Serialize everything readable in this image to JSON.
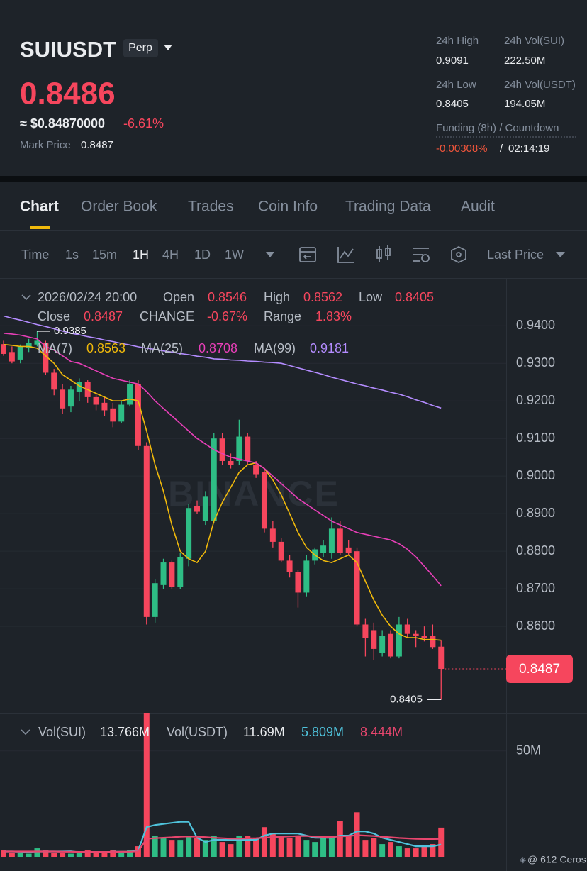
{
  "header": {
    "symbol": "SUIUSDT",
    "badge": "Perp",
    "price": "0.8486",
    "usd_price": "≈ $0.84870000",
    "change": "-6.61%",
    "mark_label": "Mark Price",
    "mark_price": "0.8487",
    "stats": [
      {
        "label": "24h High",
        "value": "0.9091"
      },
      {
        "label": "24h Vol(SUI)",
        "value": "222.50M"
      },
      {
        "label": "24h Low",
        "value": "0.8405"
      },
      {
        "label": "24h Vol(USDT)",
        "value": "194.05M"
      }
    ],
    "funding_label": "Funding (8h) / Countdown",
    "funding_rate": "-0.00308%",
    "funding_sep": "/",
    "funding_countdown": "02:14:19"
  },
  "tabs": [
    "Chart",
    "Order Book",
    "Trades",
    "Coin Info",
    "Trading Data",
    "Audit"
  ],
  "toolbar": {
    "intervals": [
      "Time",
      "1s",
      "15m",
      "1H",
      "4H",
      "1D",
      "1W"
    ],
    "price_type": "Last Price"
  },
  "chart_data": {
    "type": "candlestick",
    "watermark": "BINANCE",
    "info": [
      {
        "label": "2026/02/24 20:00"
      },
      {
        "label": "Open",
        "value": "0.8546"
      },
      {
        "label": "High",
        "value": "0.8562"
      },
      {
        "label": "Low",
        "value": "0.8405"
      },
      {
        "label": "Close",
        "value": "0.8487"
      },
      {
        "label": "CHANGE",
        "value": "-0.67%"
      },
      {
        "label": "Range",
        "value": "1.83%"
      }
    ],
    "up_color": "#2ebd85",
    "down_color": "#f6465d",
    "open": [
      0.9351,
      0.933,
      0.931,
      0.934,
      0.935,
      0.9355,
      0.9275,
      0.923,
      0.9185,
      0.9225,
      0.925,
      0.921,
      0.9195,
      0.918,
      0.9145,
      0.919,
      0.9245,
      0.908,
      0.8625,
      0.871,
      0.877,
      0.8705,
      0.878,
      0.892,
      0.888,
      0.888,
      0.91,
      0.904,
      0.904,
      0.9105,
      0.903,
      0.901,
      0.886,
      0.8825,
      0.8775,
      0.8745,
      0.869,
      0.8775,
      0.8795,
      0.8795,
      0.886,
      0.881,
      0.88,
      0.8605,
      0.859,
      0.853,
      0.858,
      0.852,
      0.8605,
      0.858,
      0.8575,
      0.8575,
      0.8546
    ],
    "high": [
      0.936,
      0.9345,
      0.935,
      0.9365,
      0.9385,
      0.936,
      0.9285,
      0.9245,
      0.924,
      0.926,
      0.9255,
      0.922,
      0.921,
      0.9195,
      0.92,
      0.9255,
      0.9255,
      0.909,
      0.8725,
      0.878,
      0.8775,
      0.8795,
      0.8925,
      0.8935,
      0.896,
      0.9115,
      0.9115,
      0.906,
      0.915,
      0.9115,
      0.904,
      0.902,
      0.888,
      0.8835,
      0.879,
      0.875,
      0.879,
      0.881,
      0.883,
      0.889,
      0.888,
      0.883,
      0.881,
      0.862,
      0.861,
      0.859,
      0.859,
      0.8625,
      0.862,
      0.859,
      0.86,
      0.8605,
      0.8562
    ],
    "low": [
      0.932,
      0.93,
      0.93,
      0.933,
      0.9345,
      0.927,
      0.9215,
      0.9165,
      0.917,
      0.92,
      0.9195,
      0.9175,
      0.916,
      0.913,
      0.914,
      0.9185,
      0.907,
      0.8605,
      0.861,
      0.87,
      0.87,
      0.87,
      0.876,
      0.89,
      0.887,
      0.8875,
      0.903,
      0.902,
      0.903,
      0.903,
      0.8995,
      0.885,
      0.881,
      0.877,
      0.873,
      0.865,
      0.868,
      0.8765,
      0.8785,
      0.878,
      0.879,
      0.879,
      0.86,
      0.852,
      0.851,
      0.852,
      0.8515,
      0.8515,
      0.857,
      0.8545,
      0.856,
      0.854,
      0.8405
    ],
    "close": [
      0.9325,
      0.9305,
      0.9345,
      0.9355,
      0.936,
      0.9275,
      0.923,
      0.918,
      0.923,
      0.925,
      0.921,
      0.919,
      0.9175,
      0.9145,
      0.919,
      0.9245,
      0.908,
      0.8625,
      0.8715,
      0.877,
      0.8705,
      0.8785,
      0.8915,
      0.8905,
      0.8945,
      0.91,
      0.904,
      0.903,
      0.9105,
      0.904,
      0.9005,
      0.886,
      0.8825,
      0.8775,
      0.8745,
      0.869,
      0.8775,
      0.8805,
      0.8815,
      0.886,
      0.8795,
      0.8795,
      0.8605,
      0.857,
      0.854,
      0.8575,
      0.852,
      0.8605,
      0.858,
      0.8575,
      0.857,
      0.8545,
      0.8487
    ],
    "ma_series": [
      {
        "name": "MA(7)",
        "value_label": "0.8563",
        "color": "#f0b90b",
        "values": [
          0.935,
          0.9348,
          0.9345,
          0.9345,
          0.934,
          0.932,
          0.93,
          0.927,
          0.9255,
          0.924,
          0.923,
          0.922,
          0.921,
          0.92,
          0.92,
          0.9205,
          0.92,
          0.912,
          0.903,
          0.896,
          0.887,
          0.88,
          0.878,
          0.877,
          0.88,
          0.888,
          0.893,
          0.897,
          0.901,
          0.903,
          0.9035,
          0.902,
          0.899,
          0.895,
          0.89,
          0.885,
          0.881,
          0.879,
          0.8775,
          0.877,
          0.878,
          0.879,
          0.877,
          0.872,
          0.867,
          0.863,
          0.86,
          0.858,
          0.857,
          0.857,
          0.8565,
          0.8565,
          0.8563
        ]
      },
      {
        "name": "MA(25)",
        "value_label": "0.8708",
        "color": "#e83fb8",
        "values": [
          0.938,
          0.9378,
          0.9375,
          0.937,
          0.9365,
          0.9345,
          0.9335,
          0.932,
          0.9305,
          0.93,
          0.929,
          0.928,
          0.927,
          0.926,
          0.9255,
          0.925,
          0.9245,
          0.9225,
          0.92,
          0.918,
          0.916,
          0.914,
          0.912,
          0.91,
          0.9085,
          0.907,
          0.906,
          0.905,
          0.9045,
          0.904,
          0.9035,
          0.902,
          0.9,
          0.898,
          0.896,
          0.894,
          0.8925,
          0.891,
          0.8895,
          0.888,
          0.887,
          0.886,
          0.885,
          0.8845,
          0.884,
          0.8835,
          0.883,
          0.882,
          0.8805,
          0.8785,
          0.876,
          0.8735,
          0.8708
        ]
      },
      {
        "name": "MA(99)",
        "value_label": "0.9181",
        "color": "#b48cff",
        "values": [
          0.9426,
          0.942,
          0.9415,
          0.9409,
          0.9403,
          0.9398,
          0.9392,
          0.9386,
          0.938,
          0.9376,
          0.9371,
          0.9367,
          0.9362,
          0.9358,
          0.9353,
          0.9349,
          0.9344,
          0.934,
          0.9337,
          0.9333,
          0.933,
          0.9326,
          0.9323,
          0.9319,
          0.9316,
          0.9312,
          0.9311,
          0.9309,
          0.9308,
          0.9306,
          0.9305,
          0.9303,
          0.9302,
          0.93,
          0.9294,
          0.9288,
          0.9282,
          0.9276,
          0.927,
          0.9263,
          0.9257,
          0.9251,
          0.9245,
          0.924,
          0.9234,
          0.9229,
          0.9223,
          0.9218,
          0.9211,
          0.9203,
          0.9196,
          0.9188,
          0.9181
        ]
      }
    ],
    "ylim": [
      0.837,
      0.9525
    ],
    "yticks": [
      {
        "value": 0.94,
        "label": "0.9400"
      },
      {
        "value": 0.93,
        "label": "0.9300"
      },
      {
        "value": 0.92,
        "label": "0.9200"
      },
      {
        "value": 0.91,
        "label": "0.9100"
      },
      {
        "value": 0.9,
        "label": "0.9000"
      },
      {
        "value": 0.89,
        "label": "0.8900"
      },
      {
        "value": 0.88,
        "label": "0.8800"
      },
      {
        "value": 0.87,
        "label": "0.8700"
      },
      {
        "value": 0.86,
        "label": "0.8600"
      }
    ],
    "grid": true,
    "high_marker": "0.9385",
    "low_marker": "0.8405",
    "last_price_tag": "0.8487",
    "volume": {
      "legend": [
        {
          "label": "Vol(SUI)",
          "value": "13.766M"
        },
        {
          "label": "Vol(USDT)",
          "value": "11.69M"
        }
      ],
      "values": [
        3,
        2,
        2,
        1.5,
        4,
        3,
        2,
        2,
        1.5,
        2,
        3,
        2,
        2,
        3,
        2,
        3,
        5,
        68,
        10,
        9,
        8,
        8,
        10,
        9,
        8,
        10,
        7,
        6,
        10,
        10,
        9,
        14,
        11,
        10,
        9,
        10,
        8,
        7,
        9,
        10,
        17,
        10,
        21,
        8,
        9,
        6,
        7,
        5,
        4,
        4,
        5,
        6,
        13.766
      ],
      "ma_series": [
        {
          "value_label": "5.809M",
          "color": "#4fc3dc",
          "values": [
            2.5,
            2.5,
            2.4,
            2.3,
            2.5,
            2.5,
            2.5,
            2.5,
            2.6,
            2.1,
            2.1,
            2.1,
            2.1,
            2.4,
            2.4,
            2.4,
            3,
            14,
            15,
            15.5,
            16,
            16.5,
            16.5,
            9,
            7,
            8,
            8,
            8,
            8,
            8,
            8,
            10,
            11,
            11,
            11,
            11,
            10,
            9,
            9,
            9,
            10,
            10,
            12,
            12,
            11,
            9,
            8,
            7,
            6,
            5,
            5,
            5,
            5.809
          ]
        },
        {
          "value_label": "8.444M",
          "color": "#e8466e",
          "values": [
            2.5,
            2.5,
            2.5,
            2.5,
            2.5,
            2.5,
            2.5,
            2.4,
            2.4,
            2.3,
            2.3,
            2.3,
            2.3,
            2.3,
            2.4,
            2.4,
            2.6,
            8.5,
            8.8,
            9,
            9.2,
            9.5,
            9.6,
            9.5,
            9.3,
            9,
            8.8,
            8.6,
            8.6,
            8.7,
            8.8,
            9,
            9.3,
            9.5,
            9.6,
            9.8,
            9.8,
            9.6,
            9.4,
            9.4,
            9.6,
            9.8,
            10.2,
            10,
            9.8,
            9.5,
            9.2,
            8.9,
            8.7,
            8.5,
            8.4,
            8.4,
            8.444
          ]
        }
      ],
      "ylim": [
        0,
        68
      ],
      "yticks": [
        {
          "value": 50,
          "label": "50M"
        }
      ]
    }
  },
  "footer": "@ 612 Ceros"
}
